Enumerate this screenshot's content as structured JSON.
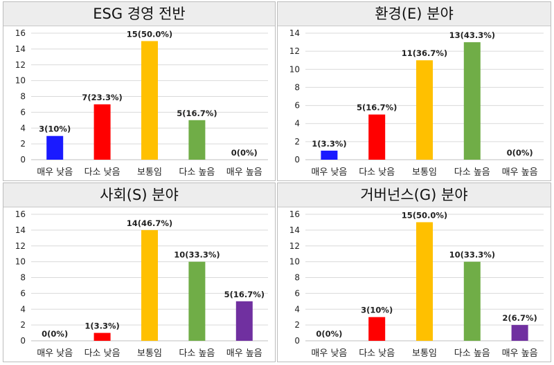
{
  "chart_data": [
    {
      "type": "bar",
      "title": "ESG 경영 전반",
      "categories": [
        "매우 낮음",
        "다소 낮음",
        "보통임",
        "다소 높음",
        "매우 높음"
      ],
      "values": [
        3,
        7,
        15,
        5,
        0
      ],
      "data_labels": [
        "3(10%)",
        "7(23.3%)",
        "15(50.0%)",
        "5(16.7%)",
        "0(0%)"
      ],
      "colors": [
        "#1a1aff",
        "#ff0000",
        "#ffc000",
        "#70ad47",
        "#7030a0"
      ],
      "ylim": [
        0,
        16
      ],
      "yticks": [
        "0",
        "2",
        "4",
        "6",
        "8",
        "10",
        "12",
        "14",
        "16"
      ],
      "grid": true,
      "legend": "none"
    },
    {
      "type": "bar",
      "title": "환경(E) 분야",
      "categories": [
        "매우 낮음",
        "다소 낮음",
        "보통임",
        "다소 높음",
        "매우 높음"
      ],
      "values": [
        1,
        5,
        11,
        13,
        0
      ],
      "data_labels": [
        "1(3.3%)",
        "5(16.7%)",
        "11(36.7%)",
        "13(43.3%)",
        "0(0%)"
      ],
      "colors": [
        "#1a1aff",
        "#ff0000",
        "#ffc000",
        "#70ad47",
        "#7030a0"
      ],
      "ylim": [
        0,
        14
      ],
      "yticks": [
        "0",
        "2",
        "4",
        "6",
        "8",
        "10",
        "12",
        "14"
      ],
      "grid": true,
      "legend": "none"
    },
    {
      "type": "bar",
      "title": "사회(S) 분야",
      "categories": [
        "매우 낮음",
        "다소 낮음",
        "보통임",
        "다소 높음",
        "매우 높음"
      ],
      "values": [
        0,
        1,
        14,
        10,
        5
      ],
      "data_labels": [
        "0(0%)",
        "1(3.3%)",
        "14(46.7%)",
        "10(33.3%)",
        "5(16.7%)"
      ],
      "colors": [
        "#1a1aff",
        "#ff0000",
        "#ffc000",
        "#70ad47",
        "#7030a0"
      ],
      "ylim": [
        0,
        16
      ],
      "yticks": [
        "0",
        "2",
        "4",
        "6",
        "8",
        "10",
        "12",
        "14",
        "16"
      ],
      "grid": true,
      "legend": "none"
    },
    {
      "type": "bar",
      "title": "거버넌스(G) 분야",
      "categories": [
        "매우 낮음",
        "다소 낮음",
        "보통임",
        "다소 높음",
        "매우 높음"
      ],
      "values": [
        0,
        3,
        15,
        10,
        2
      ],
      "data_labels": [
        "0(0%)",
        "3(10%)",
        "15(50.0%)",
        "10(33.3%)",
        "2(6.7%)"
      ],
      "colors": [
        "#1a1aff",
        "#ff0000",
        "#ffc000",
        "#70ad47",
        "#7030a0"
      ],
      "ylim": [
        0,
        16
      ],
      "yticks": [
        "0",
        "2",
        "4",
        "6",
        "8",
        "10",
        "12",
        "14",
        "16"
      ],
      "grid": true,
      "legend": "none"
    }
  ]
}
